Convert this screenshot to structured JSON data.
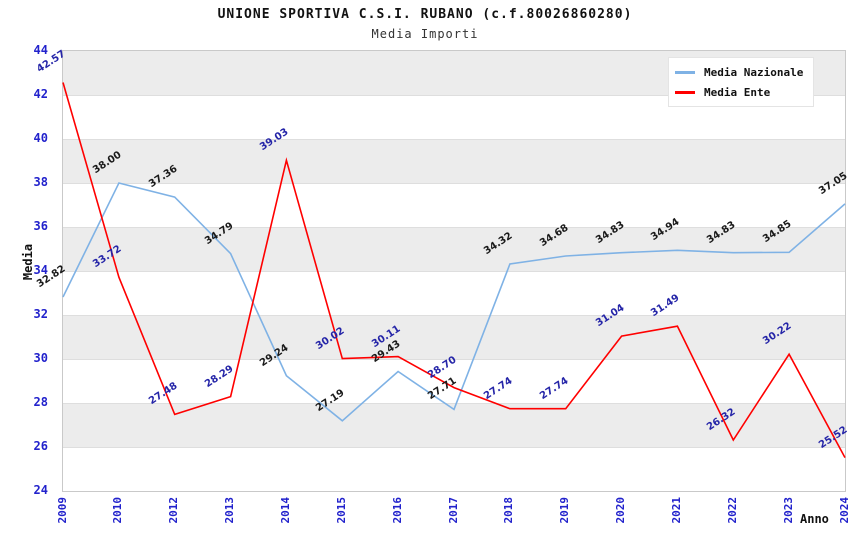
{
  "title": "UNIONE SPORTIVA C.S.I. RUBANO (c.f.80026860280)",
  "subtitle": "Media Importi",
  "legend": {
    "items": [
      {
        "label": "Media Nazionale",
        "color": "#7fb2e5"
      },
      {
        "label": "Media Ente",
        "color": "#ff0000"
      }
    ]
  },
  "chart_data": {
    "type": "line",
    "x": [
      "2009",
      "2010",
      "2012",
      "2013",
      "2014",
      "2015",
      "2016",
      "2017",
      "2018",
      "2019",
      "2020",
      "2021",
      "2022",
      "2023",
      "2024"
    ],
    "series": [
      {
        "name": "Media Nazionale",
        "color": "#7fb2e5",
        "label_color": "#1a1a1a",
        "values": [
          32.82,
          38.0,
          37.36,
          34.79,
          29.24,
          27.19,
          29.43,
          27.71,
          34.32,
          34.68,
          34.83,
          34.94,
          34.83,
          34.85,
          37.05
        ]
      },
      {
        "name": "Media Ente",
        "color": "#ff0000",
        "label_color": "#2525a8",
        "values": [
          42.57,
          33.72,
          27.48,
          28.29,
          39.03,
          30.02,
          30.11,
          28.7,
          27.74,
          27.74,
          31.04,
          31.49,
          26.32,
          30.22,
          25.52
        ]
      }
    ],
    "xlabel": "Anno",
    "ylabel": "Media",
    "ylim": [
      24,
      44
    ],
    "y_ticks": [
      44,
      42,
      40,
      38,
      36,
      34,
      32,
      30,
      28,
      26,
      24
    ],
    "grid": "horizontal-bands",
    "legend_position": "top-right",
    "tick_label_color": "#2222cc",
    "band_color": "#ececec"
  }
}
